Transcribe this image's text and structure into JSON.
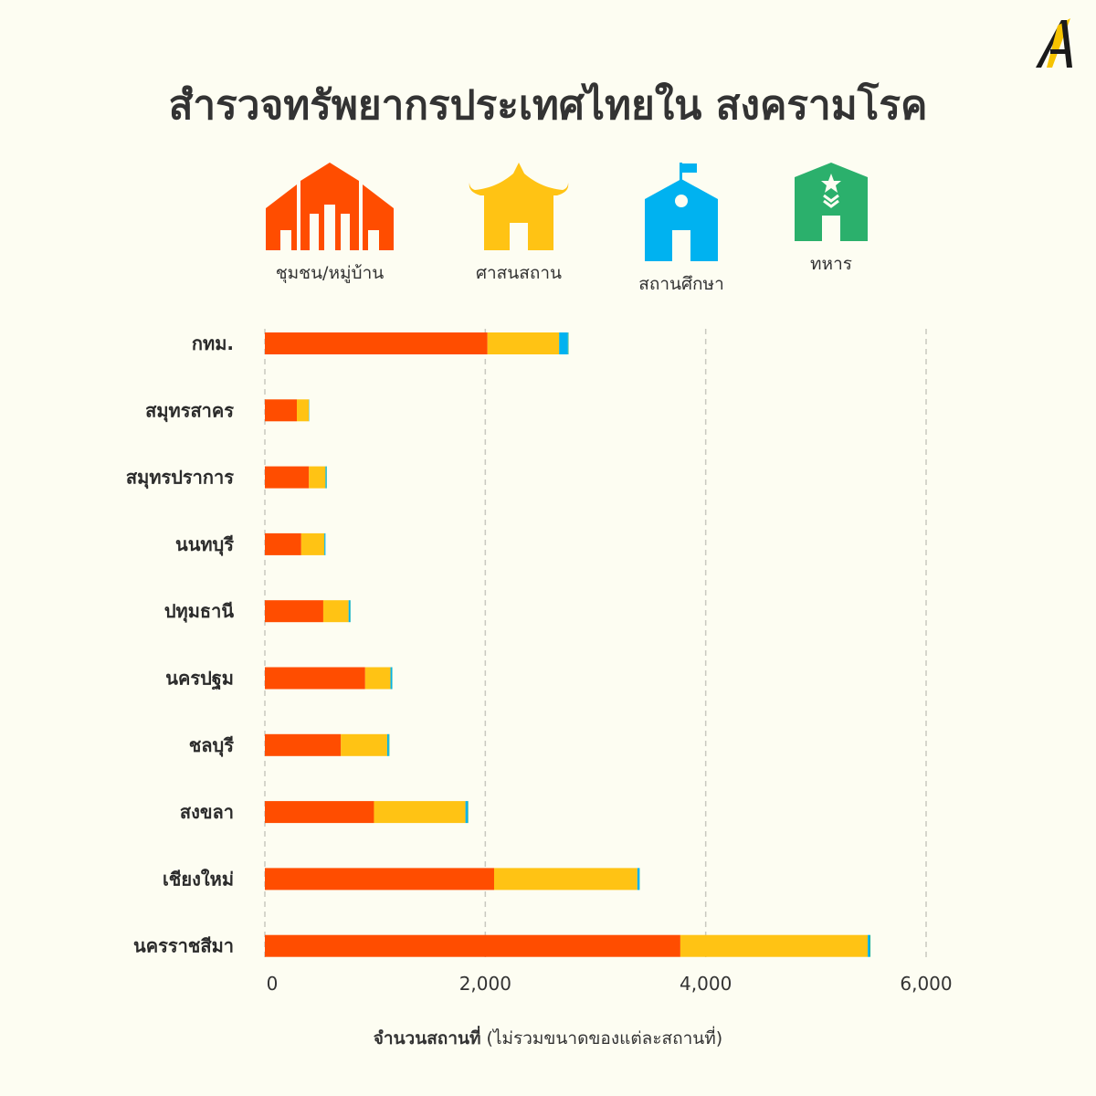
{
  "title": "สำรวจทรัพยากรประเทศไทยใน สงครามโรค",
  "legend": [
    {
      "label": "ชุมชน/หมู่บ้าน",
      "icon": "village-icon",
      "color": "#ff4d00"
    },
    {
      "label": "ศาสนสถาน",
      "icon": "temple-icon",
      "color": "#ffc314"
    },
    {
      "label": "สถานศึกษา",
      "icon": "school-icon",
      "color": "#00b2f0"
    },
    {
      "label": "ทหาร",
      "icon": "military-icon",
      "color": "#2bb06c"
    }
  ],
  "xlabel_bold": "จำนวนสถานที่",
  "xlabel_rest": " (ไม่รวมขนาดของแต่ละสถานที่)",
  "chart_data": {
    "type": "bar",
    "orientation": "horizontal",
    "stacked": true,
    "categories": [
      "กทม.",
      "สมุทรสาคร",
      "สมุทรปราการ",
      "นนทบุรี",
      "ปทุมธานี",
      "นครปฐม",
      "ชลบุรี",
      "สงขลา",
      "เชียงใหม่",
      "นครราชสีมา"
    ],
    "series": [
      {
        "name": "ชุมชน/หมู่บ้าน",
        "color": "#ff4d00",
        "values": [
          2020,
          290,
          400,
          330,
          530,
          910,
          690,
          990,
          2080,
          3770
        ]
      },
      {
        "name": "ศาสนสถาน",
        "color": "#ffc314",
        "values": [
          650,
          110,
          150,
          210,
          230,
          230,
          420,
          830,
          1300,
          1700
        ]
      },
      {
        "name": "สถานศึกษา",
        "color": "#00b2f0",
        "values": [
          80,
          3,
          10,
          10,
          15,
          15,
          15,
          20,
          20,
          20
        ]
      },
      {
        "name": "ทหาร",
        "color": "#2bb06c",
        "values": [
          5,
          0,
          2,
          0,
          2,
          2,
          5,
          5,
          2,
          5
        ]
      }
    ],
    "xticks": [
      0,
      2000,
      4000,
      6000
    ],
    "xtick_labels": [
      "0",
      "2,000",
      "4,000",
      "6,000"
    ],
    "xlim": [
      0,
      6000
    ],
    "grid": "vertical-dashed"
  }
}
